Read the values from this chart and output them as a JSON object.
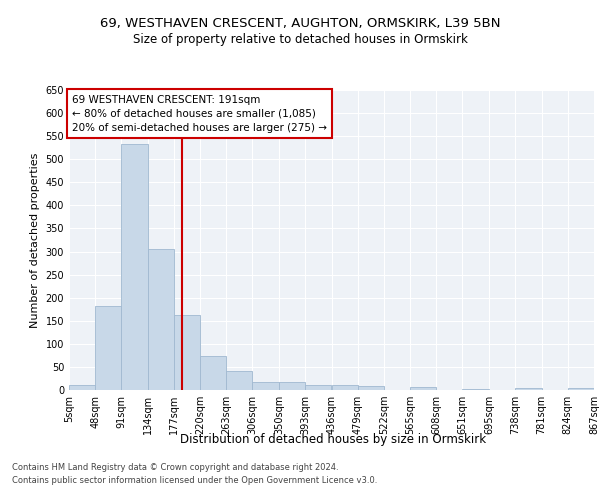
{
  "title1": "69, WESTHAVEN CRESCENT, AUGHTON, ORMSKIRK, L39 5BN",
  "title2": "Size of property relative to detached houses in Ormskirk",
  "xlabel": "Distribution of detached houses by size in Ormskirk",
  "ylabel": "Number of detached properties",
  "footnote1": "Contains HM Land Registry data © Crown copyright and database right 2024.",
  "footnote2": "Contains public sector information licensed under the Open Government Licence v3.0.",
  "annotation_line1": "69 WESTHAVEN CRESCENT: 191sqm",
  "annotation_line2": "← 80% of detached houses are smaller (1,085)",
  "annotation_line3": "20% of semi-detached houses are larger (275) →",
  "bar_color": "#c8d8e8",
  "bar_edge_color": "#a0b8d0",
  "vline_x": 191,
  "vline_color": "#cc0000",
  "bins": [
    5,
    48,
    91,
    134,
    177,
    220,
    263,
    306,
    350,
    393,
    436,
    479,
    522,
    565,
    608,
    651,
    695,
    738,
    781,
    824,
    867
  ],
  "bar_heights": [
    10,
    183,
    533,
    305,
    163,
    73,
    41,
    17,
    18,
    11,
    10,
    9,
    0,
    6,
    0,
    3,
    0,
    4,
    0,
    4
  ],
  "ylim": [
    0,
    650
  ],
  "yticks": [
    0,
    50,
    100,
    150,
    200,
    250,
    300,
    350,
    400,
    450,
    500,
    550,
    600,
    650
  ],
  "bg_color": "#eef2f7",
  "grid_color": "#ffffff",
  "title1_fontsize": 9.5,
  "title2_fontsize": 8.5,
  "xlabel_fontsize": 8.5,
  "ylabel_fontsize": 8,
  "tick_fontsize": 7,
  "annotation_fontsize": 7.5,
  "footnote_fontsize": 6
}
